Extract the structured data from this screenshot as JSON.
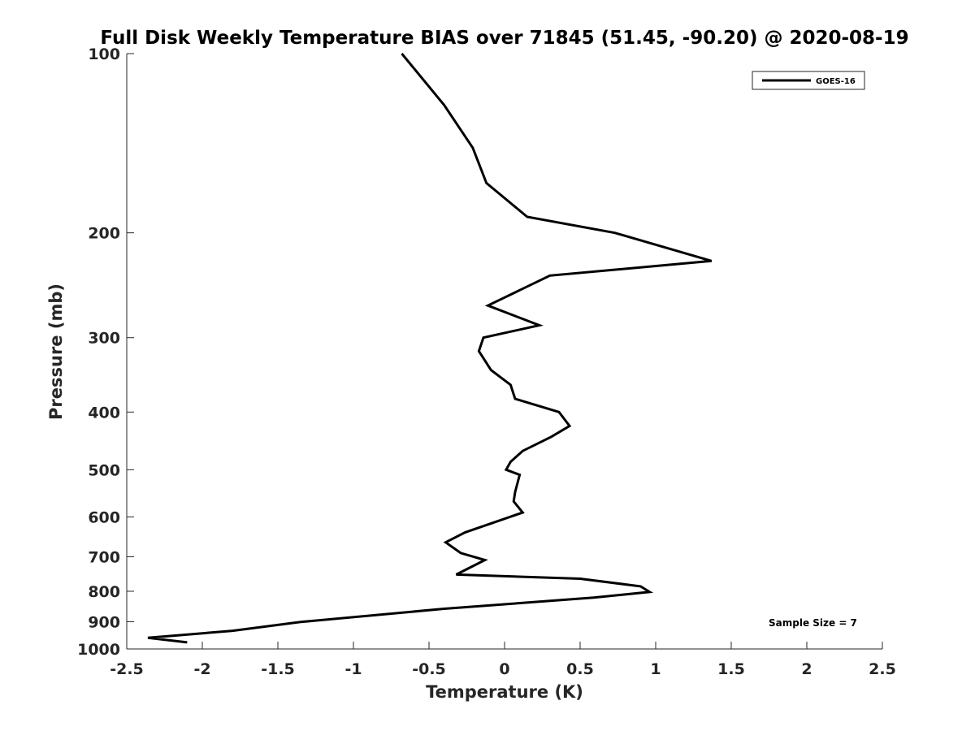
{
  "chart_data": {
    "type": "line",
    "title": "Full Disk Weekly Temperature BIAS over 71845 (51.45, -90.20) @ 2020-08-19",
    "xlabel": "Temperature (K)",
    "ylabel": "Pressure (mb)",
    "xlim": [
      -2.5,
      2.5
    ],
    "ylim": [
      100,
      1000
    ],
    "y_scale": "log",
    "y_reversed": true,
    "grid": false,
    "legend_position": "top-right",
    "x_ticks": [
      -2.5,
      -2,
      -1.5,
      -1,
      -0.5,
      0,
      0.5,
      1,
      1.5,
      2,
      2.5
    ],
    "x_tick_labels": [
      "-2.5",
      "-2",
      "-1.5",
      "-1",
      "-0.5",
      "0",
      "0.5",
      "1",
      "1.5",
      "2",
      "2.5"
    ],
    "y_ticks": [
      100,
      200,
      300,
      400,
      500,
      600,
      700,
      800,
      900,
      1000
    ],
    "y_tick_labels": [
      "100",
      "200",
      "300",
      "400",
      "500",
      "600",
      "700",
      "800",
      "900",
      "1000"
    ],
    "series": [
      {
        "name": "GOES-16",
        "color": "#000000",
        "points": [
          {
            "x": -0.68,
            "p": 100
          },
          {
            "x": -0.4,
            "p": 122
          },
          {
            "x": -0.21,
            "p": 144
          },
          {
            "x": -0.12,
            "p": 165
          },
          {
            "x": 0.15,
            "p": 188
          },
          {
            "x": 0.73,
            "p": 200
          },
          {
            "x": 1.37,
            "p": 223
          },
          {
            "x": 0.3,
            "p": 236
          },
          {
            "x": -0.11,
            "p": 265
          },
          {
            "x": 0.23,
            "p": 286
          },
          {
            "x": -0.14,
            "p": 300
          },
          {
            "x": -0.17,
            "p": 316
          },
          {
            "x": -0.09,
            "p": 340
          },
          {
            "x": 0.04,
            "p": 360
          },
          {
            "x": 0.07,
            "p": 380
          },
          {
            "x": 0.36,
            "p": 400
          },
          {
            "x": 0.43,
            "p": 422
          },
          {
            "x": 0.31,
            "p": 440
          },
          {
            "x": 0.12,
            "p": 465
          },
          {
            "x": 0.04,
            "p": 485
          },
          {
            "x": 0.01,
            "p": 500
          },
          {
            "x": 0.1,
            "p": 510
          },
          {
            "x": 0.07,
            "p": 545
          },
          {
            "x": 0.06,
            "p": 565
          },
          {
            "x": 0.12,
            "p": 590
          },
          {
            "x": -0.26,
            "p": 637
          },
          {
            "x": -0.39,
            "p": 662
          },
          {
            "x": -0.29,
            "p": 690
          },
          {
            "x": -0.13,
            "p": 709
          },
          {
            "x": -0.32,
            "p": 750
          },
          {
            "x": 0.5,
            "p": 762
          },
          {
            "x": 0.9,
            "p": 785
          },
          {
            "x": 0.96,
            "p": 802
          },
          {
            "x": 0.59,
            "p": 820
          },
          {
            "x": -0.4,
            "p": 856
          },
          {
            "x": -1.35,
            "p": 901
          },
          {
            "x": -1.8,
            "p": 932
          },
          {
            "x": -2.36,
            "p": 958
          },
          {
            "x": -2.1,
            "p": 975
          }
        ]
      }
    ],
    "annotations": [
      "Sample Size = 7"
    ]
  }
}
